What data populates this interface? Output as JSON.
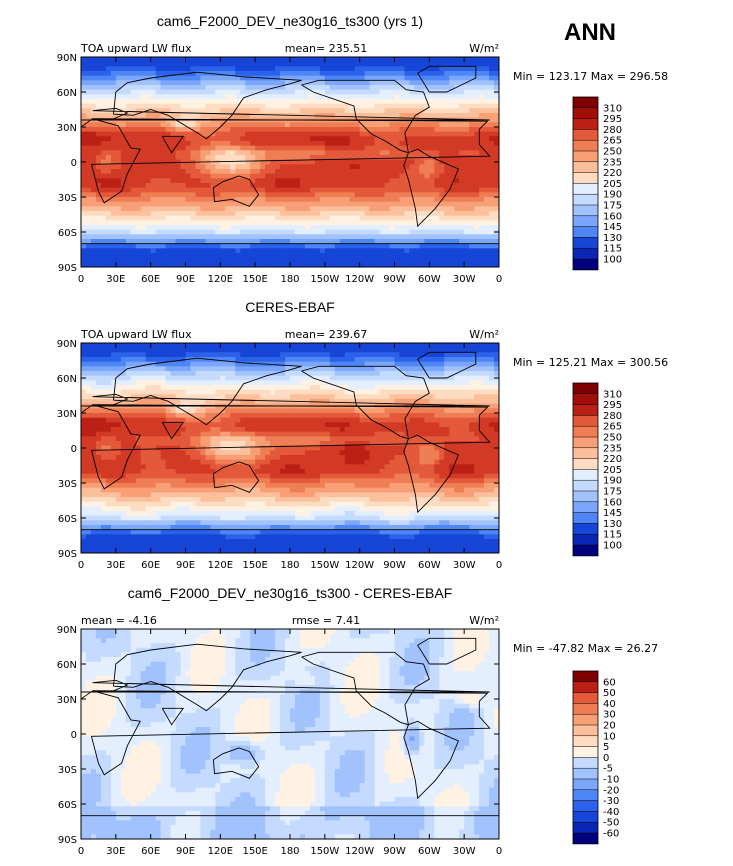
{
  "season": "ANN",
  "units": "W/m²",
  "colors": {
    "ocean_land_outline": "#000000",
    "palette_main": [
      "#00007f",
      "#0a26b5",
      "#1745d6",
      "#2a62ec",
      "#4f86f5",
      "#7aa6fb",
      "#a2c2fd",
      "#c4dafe",
      "#e3efff",
      "#fff2e3",
      "#fedcc2",
      "#fcbf9c",
      "#f89f76",
      "#f07e55",
      "#e3593a",
      "#d23a26",
      "#bb2015",
      "#a00f0a",
      "#7f0000"
    ],
    "palette_diff": [
      "#00007f",
      "#0a26b5",
      "#1745d6",
      "#2a62ec",
      "#4f86f5",
      "#7aa6fb",
      "#a2c2fd",
      "#c4dafe",
      "#e3efff",
      "#fff2e3",
      "#fedcc2",
      "#fcbf9c",
      "#f89f76",
      "#f07e55",
      "#e3593a",
      "#bb2015",
      "#7f0000"
    ]
  },
  "axes": {
    "lat_ticks": [
      "90N",
      "60N",
      "30N",
      "0",
      "30S",
      "60S",
      "90S"
    ],
    "lon_ticks": [
      "0",
      "30E",
      "60E",
      "90E",
      "120E",
      "150E",
      "180",
      "150W",
      "120W",
      "90W",
      "60W",
      "30W",
      "0"
    ]
  },
  "chart_data": [
    {
      "type": "heatmap",
      "title": "cam6_F2000_DEV_ne30g16_ts300 (yrs 1)",
      "left_label": "TOA upward LW flux",
      "center_label": "mean= 235.51",
      "units": "W/m²",
      "min_max": "Min = 123.17 Max = 296.58",
      "colorbar_levels": [
        "310",
        "295",
        "280",
        "265",
        "250",
        "235",
        "220",
        "205",
        "190",
        "175",
        "160",
        "145",
        "130",
        "115",
        "100"
      ],
      "x_range": [
        0,
        360
      ],
      "y_range": [
        -90,
        90
      ]
    },
    {
      "type": "heatmap",
      "title": "CERES-EBAF",
      "left_label": "TOA upward LW flux",
      "center_label": "mean= 239.67",
      "units": "W/m²",
      "min_max": "Min = 125.21 Max = 300.56",
      "colorbar_levels": [
        "310",
        "295",
        "280",
        "265",
        "250",
        "235",
        "220",
        "205",
        "190",
        "175",
        "160",
        "145",
        "130",
        "115",
        "100"
      ],
      "x_range": [
        0,
        360
      ],
      "y_range": [
        -90,
        90
      ]
    },
    {
      "type": "heatmap",
      "title": "cam6_F2000_DEV_ne30g16_ts300 - CERES-EBAF",
      "left_label": "mean =   -4.16",
      "center_label": "rmse =    7.41",
      "units": "W/m²",
      "min_max": "Min = -47.82 Max =  26.27",
      "colorbar_levels": [
        "60",
        "50",
        "40",
        "30",
        "20",
        "10",
        "5",
        "0",
        "-5",
        "-10",
        "-20",
        "-30",
        "-40",
        "-50",
        "-60"
      ],
      "x_range": [
        0,
        360
      ],
      "y_range": [
        -90,
        90
      ]
    }
  ]
}
